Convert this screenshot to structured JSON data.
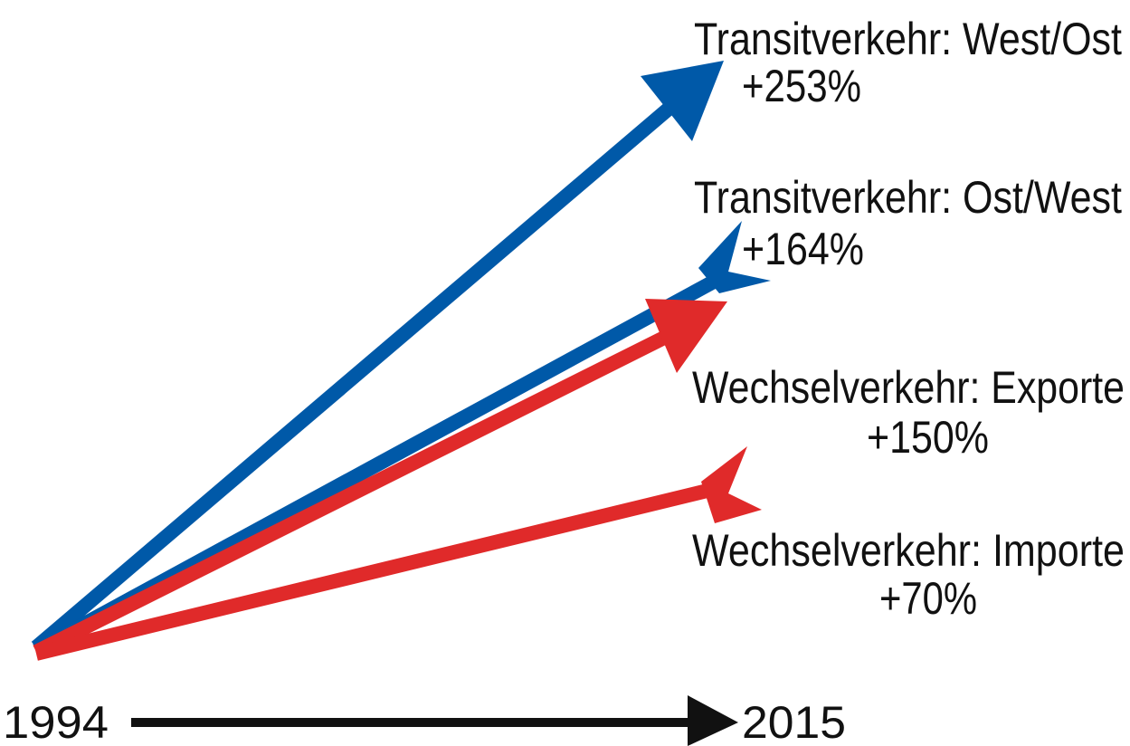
{
  "arrows": [
    {
      "label": "Transitverkehr: West/Ost",
      "change": "+253%"
    },
    {
      "label": "Transitverkehr: Ost/West",
      "change": "+164%"
    },
    {
      "label": "Wechselverkehr: Exporte",
      "change": "+150%"
    },
    {
      "label": "Wechselverkehr: Importe",
      "change": "+70%"
    }
  ],
  "axis": {
    "start": "1994",
    "end": "2015"
  }
}
